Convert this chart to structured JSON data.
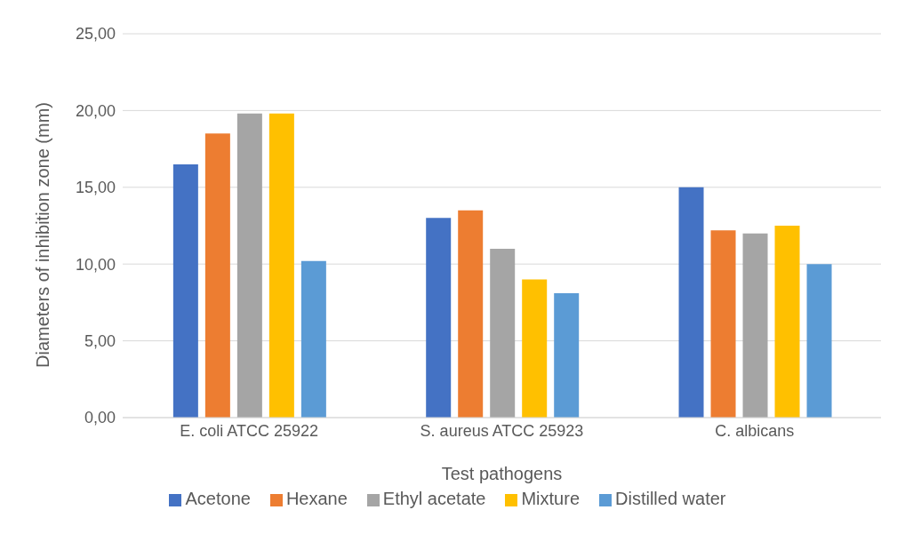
{
  "chart_data": {
    "type": "bar",
    "xlabel": "Test pathogens",
    "ylabel": "Diameters of inhibition zone (mm)",
    "categories": [
      "E. coli ATCC 25922",
      "S. aureus ATCC 25923",
      "C. albicans"
    ],
    "series": [
      {
        "name": "Acetone",
        "color": "#4472c4",
        "values": [
          16.5,
          13.0,
          15.0
        ]
      },
      {
        "name": "Hexane",
        "color": "#ed7d31",
        "values": [
          18.5,
          13.5,
          12.2
        ]
      },
      {
        "name": "Ethyl acetate",
        "color": "#a5a5a5",
        "values": [
          19.8,
          11.0,
          12.0
        ]
      },
      {
        "name": "Mixture",
        "color": "#ffc000",
        "values": [
          19.8,
          9.0,
          12.5
        ]
      },
      {
        "name": "Distilled water",
        "color": "#5b9bd5",
        "values": [
          10.2,
          8.1,
          10.0
        ]
      }
    ],
    "ylim": [
      0,
      25
    ],
    "yticks": [
      {
        "value": 0,
        "label": "0,00"
      },
      {
        "value": 5,
        "label": "5,00"
      },
      {
        "value": 10,
        "label": "10,00"
      },
      {
        "value": 15,
        "label": "15,00"
      },
      {
        "value": 20,
        "label": "20,00"
      },
      {
        "value": 25,
        "label": "25,00"
      }
    ],
    "grid": "y",
    "legend": "bottom"
  }
}
